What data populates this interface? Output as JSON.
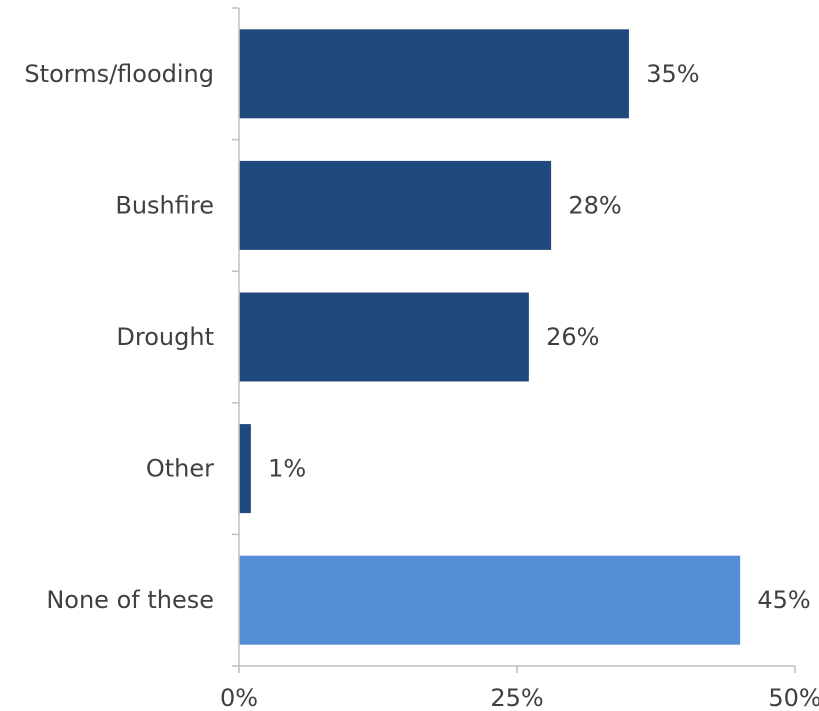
{
  "chart_data": {
    "type": "bar",
    "orientation": "horizontal",
    "categories": [
      "Storms/flooding",
      "Bushfire",
      "Drought",
      "Other",
      "None of these"
    ],
    "values": [
      35,
      28,
      26,
      1,
      45
    ],
    "value_labels": [
      "35%",
      "28%",
      "26%",
      "1%",
      "45%"
    ],
    "xlim": [
      0,
      50
    ],
    "x_ticks": [
      0,
      25,
      50
    ],
    "x_tick_labels": [
      "0%",
      "25%",
      "50%"
    ],
    "grid": false,
    "bar_colors": [
      "#1F497D",
      "#1F497D",
      "#1F497D",
      "#1F497D",
      "#558ED5"
    ]
  }
}
